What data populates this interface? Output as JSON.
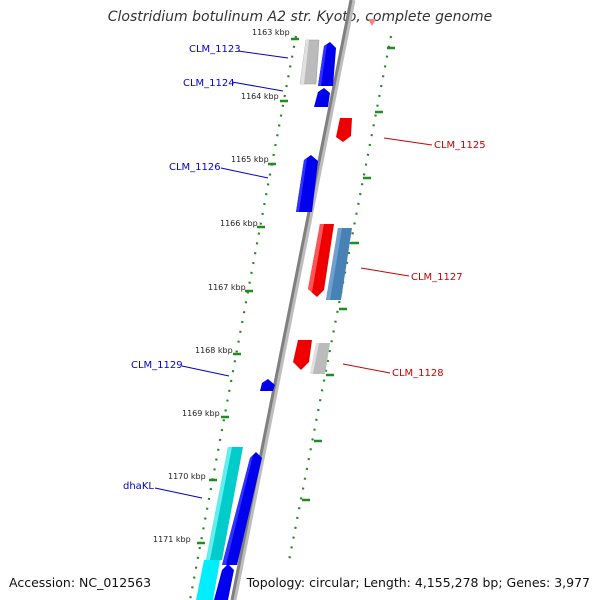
{
  "title": "Clostridium botulinum A2 str. Kyoto, complete genome",
  "footer": {
    "accession": "Accession: NC_012563",
    "topology": "Topology: circular; Length: 4,155,278 bp; Genes: 3,977"
  },
  "colors": {
    "forward_gene": "#0000ee",
    "reverse_gene": "#ee0000",
    "steel_gene": "#4682b4",
    "grey_gene": "#bbbbbb",
    "cyan_gene": "#00cccc",
    "backbone": "#808080",
    "ruler": "#228b22"
  },
  "ticks": [
    {
      "label": "1163 kbp"
    },
    {
      "label": "1164 kbp"
    },
    {
      "label": "1165 kbp"
    },
    {
      "label": "1166 kbp"
    },
    {
      "label": "1167 kbp"
    },
    {
      "label": "1168 kbp"
    },
    {
      "label": "1169 kbp"
    },
    {
      "label": "1170 kbp"
    },
    {
      "label": "1171 kbp"
    }
  ],
  "genes": [
    {
      "label": "CLM_1123"
    },
    {
      "label": "CLM_1124"
    },
    {
      "label": "CLM_1125"
    },
    {
      "label": "CLM_1126"
    },
    {
      "label": "CLM_1127"
    },
    {
      "label": "CLM_1128"
    },
    {
      "label": "CLM_1129"
    },
    {
      "label": "dhaKL"
    }
  ]
}
